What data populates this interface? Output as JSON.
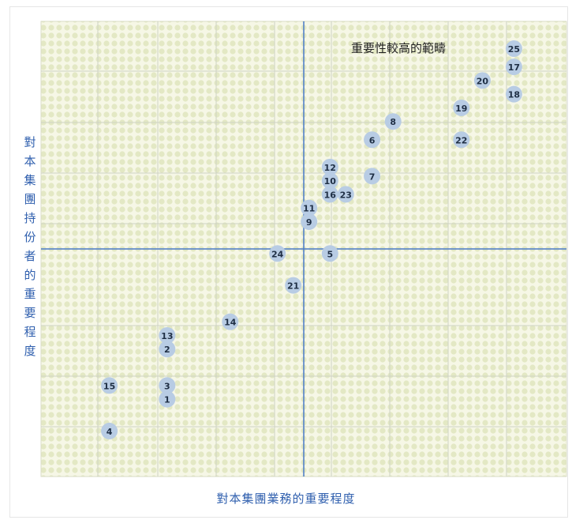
{
  "chart_data": {
    "type": "scatter",
    "xlabel": "對本集團業務的重要程度",
    "ylabel": "對本集團持份者的重要程度",
    "annotation": "重要性較高的範疇",
    "grid": true,
    "xlim": [
      0,
      10
    ],
    "ylim": [
      0,
      10
    ],
    "colors": {
      "point": "#b8cce4",
      "axis": "#4a7bc8",
      "label": "#2f5fae",
      "background": "#f2f4dc"
    },
    "points": [
      {
        "label": "1",
        "x": 2.4,
        "y": 1.7
      },
      {
        "label": "2",
        "x": 2.4,
        "y": 2.8
      },
      {
        "label": "3",
        "x": 2.4,
        "y": 2.0
      },
      {
        "label": "4",
        "x": 1.3,
        "y": 1.0
      },
      {
        "label": "5",
        "x": 5.5,
        "y": 4.9
      },
      {
        "label": "6",
        "x": 6.3,
        "y": 7.4
      },
      {
        "label": "7",
        "x": 6.3,
        "y": 6.6
      },
      {
        "label": "8",
        "x": 6.7,
        "y": 7.8
      },
      {
        "label": "9",
        "x": 5.1,
        "y": 5.6
      },
      {
        "label": "10",
        "x": 5.5,
        "y": 6.5
      },
      {
        "label": "11",
        "x": 5.1,
        "y": 5.9
      },
      {
        "label": "12",
        "x": 5.5,
        "y": 6.8
      },
      {
        "label": "13",
        "x": 2.4,
        "y": 3.1
      },
      {
        "label": "14",
        "x": 3.6,
        "y": 3.4
      },
      {
        "label": "15",
        "x": 1.3,
        "y": 2.0
      },
      {
        "label": "16",
        "x": 5.5,
        "y": 6.2
      },
      {
        "label": "17",
        "x": 9.0,
        "y": 9.0
      },
      {
        "label": "18",
        "x": 9.0,
        "y": 8.4
      },
      {
        "label": "19",
        "x": 8.0,
        "y": 8.1
      },
      {
        "label": "20",
        "x": 8.4,
        "y": 8.7
      },
      {
        "label": "21",
        "x": 4.8,
        "y": 4.2
      },
      {
        "label": "22",
        "x": 8.0,
        "y": 7.4
      },
      {
        "label": "23",
        "x": 5.8,
        "y": 6.2
      },
      {
        "label": "24",
        "x": 4.5,
        "y": 4.9
      },
      {
        "label": "25",
        "x": 9.0,
        "y": 9.4
      }
    ]
  }
}
